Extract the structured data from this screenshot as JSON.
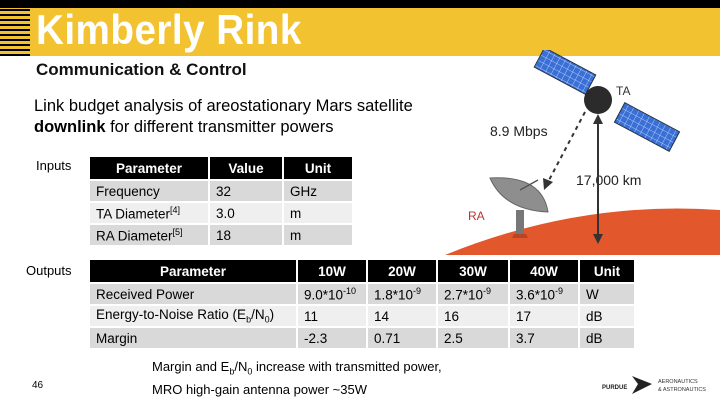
{
  "header": {
    "title": "Kimberly Rink",
    "subtitle": "Communication & Control"
  },
  "heading": {
    "line1": "Link budget analysis of areostationary Mars satellite",
    "bold": "downlink",
    "line2_rest": " for different transmitter powers"
  },
  "labels": {
    "inputs": "Inputs",
    "outputs": "Outputs"
  },
  "inputs_table": {
    "headers": [
      "Parameter",
      "Value",
      "Unit"
    ],
    "rows": [
      {
        "param": "Frequency",
        "ref": "",
        "value": "32",
        "unit": "GHz"
      },
      {
        "param": "TA Diameter",
        "ref": "[4]",
        "value": "3.0",
        "unit": "m"
      },
      {
        "param": "RA Diameter",
        "ref": "[5]",
        "value": "18",
        "unit": "m"
      }
    ]
  },
  "outputs_table": {
    "headers": [
      "Parameter",
      "10W",
      "20W",
      "30W",
      "40W",
      "Unit"
    ],
    "rows": [
      {
        "param": "Received Power",
        "v1": "9.0*10",
        "e1": "-10",
        "v2": "1.8*10",
        "e2": "-9",
        "v3": "2.7*10",
        "e3": "-9",
        "v4": "3.6*10",
        "e4": "-9",
        "unit": "W"
      },
      {
        "param": "Energy-to-Noise Ratio (E",
        "p_sub1": "b",
        "p_mid": "/N",
        "p_sub2": "0",
        "p_end": ")",
        "v1": "11",
        "v2": "14",
        "v3": "16",
        "v4": "17",
        "unit": "dB"
      },
      {
        "param": "Margin",
        "v1": "-2.3",
        "v2": "0.71",
        "v3": "2.5",
        "v4": "3.7",
        "unit": "dB"
      }
    ]
  },
  "footer": {
    "page_number": "46",
    "note_a": "Margin and E",
    "note_sub1": "b",
    "note_b": "/N",
    "note_sub2": "0",
    "note_c": " increase with transmitted power,",
    "note_line2": "MRO high-gain antenna power ~35W"
  },
  "diagram": {
    "ta_label": "TA",
    "ra_label": "RA",
    "rate": "8.9 Mbps",
    "distance": "17,000 km"
  },
  "logo": {
    "left_text": "PURDUE",
    "right_line1": "AERONAUTICS",
    "right_line2": "& ASTRONAUTICS"
  },
  "colors": {
    "accent": "#f2c230",
    "mars": "#e2582c"
  }
}
